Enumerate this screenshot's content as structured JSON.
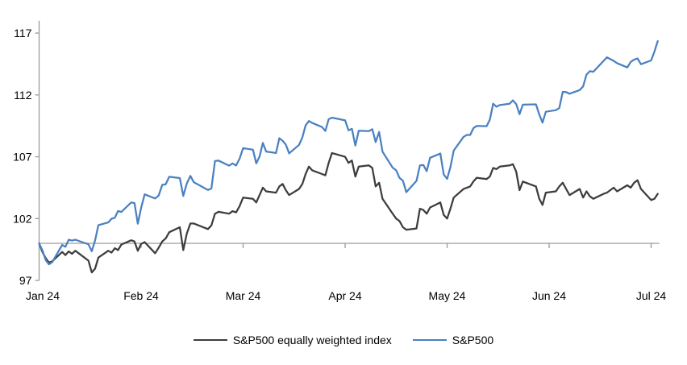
{
  "chart_data": {
    "type": "line",
    "title": "",
    "xlabel": "",
    "ylabel": "",
    "x_tick_labels": [
      "Jan 24",
      "Feb 24",
      "Mar 24",
      "Apr 24",
      "May 24",
      "Jun 24",
      "Jul 24"
    ],
    "y_ticks": [
      97,
      102,
      107,
      112,
      117
    ],
    "ylim": [
      97,
      118
    ],
    "baseline_value": 100,
    "grid": "off",
    "legend_position": "bottom-center",
    "colors": {
      "sp500": "#4a80c2",
      "sp500_equal_weight": "#3d3d3d",
      "axis": "#9b9b9b",
      "label_text": "#000000"
    },
    "series": [
      {
        "name": "S&P500 equally weighted index",
        "color": "#3d3d3d",
        "points": [
          [
            1,
            1,
            100.0
          ],
          [
            1,
            2,
            99.3
          ],
          [
            1,
            3,
            98.8
          ],
          [
            1,
            4,
            98.45
          ],
          [
            1,
            5,
            98.55
          ],
          [
            1,
            8,
            99.3
          ],
          [
            1,
            9,
            99.05
          ],
          [
            1,
            10,
            99.35
          ],
          [
            1,
            11,
            99.15
          ],
          [
            1,
            12,
            99.4
          ],
          [
            1,
            16,
            98.6
          ],
          [
            1,
            17,
            97.65
          ],
          [
            1,
            18,
            97.95
          ],
          [
            1,
            19,
            98.85
          ],
          [
            1,
            22,
            99.4
          ],
          [
            1,
            23,
            99.25
          ],
          [
            1,
            24,
            99.6
          ],
          [
            1,
            25,
            99.45
          ],
          [
            1,
            26,
            99.9
          ],
          [
            1,
            29,
            100.25
          ],
          [
            1,
            30,
            100.15
          ],
          [
            1,
            31,
            99.4
          ],
          [
            2,
            1,
            99.95
          ],
          [
            2,
            2,
            100.1
          ],
          [
            2,
            5,
            99.2
          ],
          [
            2,
            6,
            99.65
          ],
          [
            2,
            7,
            100.15
          ],
          [
            2,
            8,
            100.4
          ],
          [
            2,
            9,
            100.9
          ],
          [
            2,
            12,
            101.3
          ],
          [
            2,
            13,
            99.45
          ],
          [
            2,
            14,
            100.8
          ],
          [
            2,
            15,
            101.6
          ],
          [
            2,
            16,
            101.6
          ],
          [
            2,
            20,
            101.15
          ],
          [
            2,
            21,
            101.45
          ],
          [
            2,
            22,
            102.4
          ],
          [
            2,
            23,
            102.55
          ],
          [
            2,
            26,
            102.4
          ],
          [
            2,
            27,
            102.6
          ],
          [
            2,
            28,
            102.5
          ],
          [
            2,
            29,
            103.0
          ],
          [
            3,
            1,
            103.7
          ],
          [
            3,
            4,
            103.6
          ],
          [
            3,
            5,
            103.3
          ],
          [
            3,
            6,
            103.9
          ],
          [
            3,
            7,
            104.5
          ],
          [
            3,
            8,
            104.2
          ],
          [
            3,
            11,
            104.1
          ],
          [
            3,
            12,
            104.6
          ],
          [
            3,
            13,
            104.8
          ],
          [
            3,
            14,
            104.3
          ],
          [
            3,
            15,
            103.9
          ],
          [
            3,
            18,
            104.4
          ],
          [
            3,
            19,
            104.8
          ],
          [
            3,
            20,
            105.6
          ],
          [
            3,
            21,
            106.2
          ],
          [
            3,
            22,
            105.9
          ],
          [
            3,
            25,
            105.6
          ],
          [
            3,
            26,
            105.5
          ],
          [
            3,
            27,
            106.5
          ],
          [
            3,
            28,
            107.3
          ],
          [
            4,
            1,
            107.0
          ],
          [
            4,
            2,
            106.5
          ],
          [
            4,
            3,
            106.7
          ],
          [
            4,
            4,
            105.4
          ],
          [
            4,
            5,
            106.2
          ],
          [
            4,
            8,
            106.3
          ],
          [
            4,
            9,
            106.1
          ],
          [
            4,
            10,
            104.6
          ],
          [
            4,
            11,
            104.9
          ],
          [
            4,
            12,
            103.6
          ],
          [
            4,
            15,
            102.4
          ],
          [
            4,
            16,
            102.0
          ],
          [
            4,
            17,
            101.8
          ],
          [
            4,
            18,
            101.3
          ],
          [
            4,
            19,
            101.1
          ],
          [
            4,
            22,
            101.2
          ],
          [
            4,
            23,
            102.8
          ],
          [
            4,
            24,
            102.7
          ],
          [
            4,
            25,
            102.4
          ],
          [
            4,
            26,
            102.9
          ],
          [
            4,
            29,
            103.3
          ],
          [
            4,
            30,
            102.3
          ],
          [
            5,
            1,
            102.0
          ],
          [
            5,
            2,
            102.8
          ],
          [
            5,
            3,
            103.7
          ],
          [
            5,
            6,
            104.4
          ],
          [
            5,
            7,
            104.5
          ],
          [
            5,
            8,
            104.6
          ],
          [
            5,
            9,
            105.0
          ],
          [
            5,
            10,
            105.3
          ],
          [
            5,
            13,
            105.2
          ],
          [
            5,
            14,
            105.4
          ],
          [
            5,
            15,
            106.1
          ],
          [
            5,
            16,
            106.0
          ],
          [
            5,
            17,
            106.2
          ],
          [
            5,
            20,
            106.3
          ],
          [
            5,
            21,
            106.4
          ],
          [
            5,
            22,
            105.8
          ],
          [
            5,
            23,
            104.3
          ],
          [
            5,
            24,
            105.0
          ],
          [
            5,
            28,
            104.6
          ],
          [
            5,
            29,
            103.6
          ],
          [
            5,
            30,
            103.1
          ],
          [
            5,
            31,
            104.1
          ],
          [
            6,
            3,
            104.2
          ],
          [
            6,
            4,
            104.6
          ],
          [
            6,
            5,
            104.9
          ],
          [
            6,
            6,
            104.4
          ],
          [
            6,
            7,
            103.9
          ],
          [
            6,
            10,
            104.4
          ],
          [
            6,
            11,
            103.7
          ],
          [
            6,
            12,
            104.2
          ],
          [
            6,
            13,
            103.8
          ],
          [
            6,
            14,
            103.6
          ],
          [
            6,
            17,
            104.0
          ],
          [
            6,
            18,
            104.1
          ],
          [
            6,
            20,
            104.5
          ],
          [
            6,
            21,
            104.2
          ],
          [
            6,
            24,
            104.7
          ],
          [
            6,
            25,
            104.5
          ],
          [
            6,
            26,
            104.9
          ],
          [
            6,
            27,
            105.1
          ],
          [
            6,
            28,
            104.4
          ],
          [
            7,
            1,
            103.5
          ],
          [
            7,
            2,
            103.6
          ],
          [
            7,
            3,
            104.0
          ]
        ]
      },
      {
        "name": "S&P500",
        "color": "#4a80c2",
        "points": [
          [
            1,
            1,
            100.0
          ],
          [
            1,
            2,
            99.43
          ],
          [
            1,
            3,
            98.64
          ],
          [
            1,
            4,
            98.3
          ],
          [
            1,
            5,
            98.48
          ],
          [
            1,
            8,
            99.87
          ],
          [
            1,
            9,
            99.72
          ],
          [
            1,
            10,
            100.29
          ],
          [
            1,
            11,
            100.22
          ],
          [
            1,
            12,
            100.29
          ],
          [
            1,
            16,
            99.92
          ],
          [
            1,
            17,
            99.36
          ],
          [
            1,
            18,
            100.23
          ],
          [
            1,
            19,
            101.47
          ],
          [
            1,
            22,
            101.69
          ],
          [
            1,
            23,
            101.99
          ],
          [
            1,
            24,
            102.07
          ],
          [
            1,
            25,
            102.61
          ],
          [
            1,
            26,
            102.54
          ],
          [
            1,
            29,
            103.31
          ],
          [
            1,
            30,
            103.25
          ],
          [
            1,
            31,
            101.59
          ],
          [
            2,
            1,
            102.86
          ],
          [
            2,
            2,
            103.96
          ],
          [
            2,
            5,
            103.63
          ],
          [
            2,
            6,
            103.87
          ],
          [
            2,
            7,
            104.72
          ],
          [
            2,
            8,
            104.78
          ],
          [
            2,
            9,
            105.38
          ],
          [
            2,
            12,
            105.28
          ],
          [
            2,
            13,
            103.84
          ],
          [
            2,
            14,
            104.84
          ],
          [
            2,
            15,
            105.45
          ],
          [
            2,
            16,
            104.94
          ],
          [
            2,
            20,
            104.31
          ],
          [
            2,
            21,
            104.44
          ],
          [
            2,
            22,
            106.65
          ],
          [
            2,
            23,
            106.69
          ],
          [
            2,
            26,
            106.28
          ],
          [
            2,
            27,
            106.46
          ],
          [
            2,
            28,
            106.29
          ],
          [
            2,
            29,
            106.84
          ],
          [
            3,
            1,
            107.7
          ],
          [
            3,
            4,
            107.57
          ],
          [
            3,
            5,
            106.47
          ],
          [
            3,
            6,
            107.02
          ],
          [
            3,
            7,
            108.12
          ],
          [
            3,
            8,
            107.42
          ],
          [
            3,
            11,
            107.3
          ],
          [
            3,
            12,
            108.5
          ],
          [
            3,
            13,
            108.29
          ],
          [
            3,
            14,
            107.98
          ],
          [
            3,
            15,
            107.28
          ],
          [
            3,
            18,
            107.96
          ],
          [
            3,
            19,
            108.57
          ],
          [
            3,
            20,
            109.53
          ],
          [
            3,
            21,
            109.89
          ],
          [
            3,
            22,
            109.73
          ],
          [
            3,
            25,
            109.4
          ],
          [
            3,
            26,
            109.09
          ],
          [
            3,
            27,
            110.03
          ],
          [
            3,
            28,
            110.16
          ],
          [
            4,
            1,
            109.94
          ],
          [
            4,
            2,
            109.14
          ],
          [
            4,
            3,
            109.26
          ],
          [
            4,
            4,
            107.91
          ],
          [
            4,
            5,
            109.11
          ],
          [
            4,
            8,
            109.07
          ],
          [
            4,
            9,
            109.23
          ],
          [
            4,
            10,
            108.19
          ],
          [
            4,
            11,
            109.0
          ],
          [
            4,
            12,
            107.41
          ],
          [
            4,
            15,
            106.12
          ],
          [
            4,
            16,
            105.9
          ],
          [
            4,
            17,
            105.29
          ],
          [
            4,
            18,
            105.06
          ],
          [
            4,
            19,
            104.14
          ],
          [
            4,
            22,
            105.05
          ],
          [
            4,
            23,
            106.3
          ],
          [
            4,
            24,
            106.33
          ],
          [
            4,
            25,
            105.84
          ],
          [
            4,
            26,
            106.92
          ],
          [
            4,
            29,
            107.26
          ],
          [
            4,
            30,
            105.57
          ],
          [
            5,
            1,
            105.21
          ],
          [
            5,
            2,
            106.17
          ],
          [
            5,
            3,
            107.5
          ],
          [
            5,
            6,
            108.61
          ],
          [
            5,
            7,
            108.76
          ],
          [
            5,
            8,
            108.76
          ],
          [
            5,
            9,
            109.31
          ],
          [
            5,
            10,
            109.49
          ],
          [
            5,
            13,
            109.47
          ],
          [
            5,
            14,
            110.0
          ],
          [
            5,
            15,
            111.29
          ],
          [
            5,
            16,
            111.05
          ],
          [
            5,
            17,
            111.18
          ],
          [
            5,
            20,
            111.29
          ],
          [
            5,
            21,
            111.56
          ],
          [
            5,
            22,
            111.26
          ],
          [
            5,
            23,
            110.44
          ],
          [
            5,
            24,
            111.21
          ],
          [
            5,
            28,
            111.24
          ],
          [
            5,
            29,
            110.42
          ],
          [
            5,
            30,
            109.76
          ],
          [
            5,
            31,
            110.64
          ],
          [
            6,
            3,
            110.77
          ],
          [
            6,
            4,
            110.93
          ],
          [
            6,
            5,
            112.25
          ],
          [
            6,
            6,
            112.23
          ],
          [
            6,
            7,
            112.1
          ],
          [
            6,
            10,
            112.39
          ],
          [
            6,
            11,
            112.69
          ],
          [
            6,
            12,
            113.65
          ],
          [
            6,
            13,
            113.92
          ],
          [
            6,
            14,
            113.87
          ],
          [
            6,
            17,
            114.75
          ],
          [
            6,
            18,
            115.04
          ],
          [
            6,
            20,
            114.75
          ],
          [
            6,
            21,
            114.57
          ],
          [
            6,
            24,
            114.22
          ],
          [
            6,
            25,
            114.67
          ],
          [
            6,
            26,
            114.85
          ],
          [
            6,
            27,
            114.95
          ],
          [
            6,
            28,
            114.48
          ],
          [
            7,
            1,
            114.79
          ],
          [
            7,
            2,
            115.5
          ],
          [
            7,
            3,
            116.35
          ]
        ]
      }
    ],
    "legend": [
      {
        "label": "S&P500 equally weighted index",
        "color": "#3d3d3d"
      },
      {
        "label": "S&P500",
        "color": "#4a80c2"
      }
    ]
  }
}
